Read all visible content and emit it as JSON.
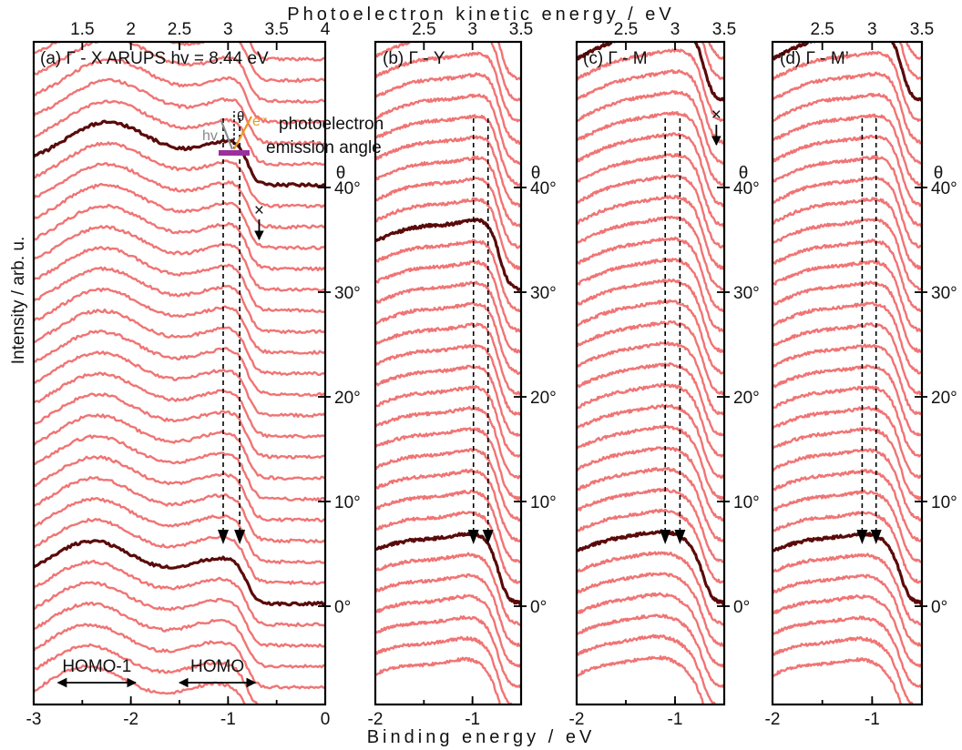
{
  "figure": {
    "top_axis_title": "Photoelectron kinetic energy / eV",
    "bottom_axis_title": "Binding energy / eV",
    "y_axis_title": "Intensity / arb. u.",
    "inset_labels": {
      "hv": "hv",
      "theta": "θ",
      "electron": "e⁻",
      "caption_line1": "photoelectron",
      "caption_line2": "emission angle"
    },
    "colors": {
      "curve": "#f07474",
      "highlight": "#5a0a0a",
      "inset_bar": "#9b2fa0",
      "inset_electron": "#f0961e",
      "inset_light": "#8a8a8a"
    }
  },
  "chart_data": [
    {
      "type": "line",
      "panel": "(a)",
      "title": "(a) Γ - X ARUPS  hv = 8.44 eV",
      "xlabel": "Binding energy / eV",
      "x2label": "Photoelectron kinetic energy / eV",
      "xlim": [
        -3,
        0
      ],
      "xticks": [
        -3,
        -2,
        -1,
        0
      ],
      "xtick_labels": [
        "-3",
        "-2",
        "-1",
        "0"
      ],
      "kinetic_ticks": [
        1.5,
        2,
        2.5,
        3,
        3.5,
        4
      ],
      "kinetic_tick_labels": [
        "1.5",
        "2",
        "2.5",
        "3",
        "3.5",
        "4"
      ],
      "kinetic_offset": 4.0,
      "ylabel": "θ",
      "theta_ticks": [
        "0°",
        "10°",
        "20°",
        "30°",
        "40°"
      ],
      "theta_values": [
        0,
        10,
        20,
        30,
        40
      ],
      "n_curves": 38,
      "theta_start": -12,
      "theta_step": 2,
      "highlight_theta": [
        0,
        40
      ],
      "peaks": {
        "homo": -1.05,
        "homo_width": 0.38,
        "homo1": -2.4,
        "homo1_width": 0.45,
        "cutoff": -0.8
      },
      "arrows": {
        "be": [
          -1.05,
          -0.88
        ],
        "label_x_be": -0.68
      },
      "annotations": [
        {
          "text": "HOMO-1",
          "from": -2.75,
          "to": -1.95
        },
        {
          "text": "HOMO",
          "from": -1.5,
          "to": -0.72
        }
      ]
    },
    {
      "type": "line",
      "panel": "(b)",
      "title": "(b) Γ - Y",
      "xlabel": "Binding energy / eV",
      "xlim": [
        -2,
        -0.5
      ],
      "xticks": [
        -2,
        -1
      ],
      "xtick_labels": [
        "-2",
        "-1"
      ],
      "kinetic_ticks": [
        2.5,
        3,
        3.5
      ],
      "kinetic_tick_labels": [
        "2.5",
        "3",
        "3.5"
      ],
      "kinetic_offset": 4.0,
      "ylabel": "θ",
      "theta_ticks": [
        "0°",
        "10°",
        "20°",
        "30°",
        "40°"
      ],
      "theta_values": [
        0,
        10,
        20,
        30,
        40
      ],
      "n_curves": 32,
      "theta_start": -12,
      "theta_step": 2,
      "highlight_theta": [
        0,
        30
      ],
      "peaks": {
        "homo": -0.88,
        "homo_width": 0.28,
        "homo1": -1.6,
        "homo1_width": 0.6,
        "cutoff": -0.72
      },
      "arrows": {
        "be": [
          -0.99,
          -0.84
        ]
      }
    },
    {
      "type": "line",
      "panel": "(c)",
      "title": "(c) Γ - M",
      "xlabel": "Binding energy / eV",
      "xlim": [
        -2,
        -0.5
      ],
      "xticks": [
        -2,
        -1
      ],
      "xtick_labels": [
        "-2",
        "-1"
      ],
      "kinetic_ticks": [
        2.5,
        3,
        3.5
      ],
      "kinetic_tick_labels": [
        "2.5",
        "3",
        "3.5"
      ],
      "kinetic_offset": 4.0,
      "ylabel": "θ",
      "theta_ticks": [
        "0°",
        "10°",
        "20°",
        "30°",
        "40°"
      ],
      "theta_values": [
        0,
        10,
        20,
        30,
        40
      ],
      "n_curves": 40,
      "theta_start": -12,
      "theta_step": 2,
      "highlight_theta": [
        0,
        48
      ],
      "peaks": {
        "homo": -0.95,
        "homo_width": 0.3,
        "homo1": -1.6,
        "homo1_width": 0.55,
        "cutoff": -0.7
      },
      "arrows": {
        "be": [
          -1.1,
          -0.95
        ],
        "label_x_be": -0.58
      }
    },
    {
      "type": "line",
      "panel": "(d)",
      "title": "(d) Γ - M’",
      "xlabel": "Binding energy / eV",
      "xlim": [
        -2,
        -0.5
      ],
      "xticks": [
        -2,
        -1
      ],
      "xtick_labels": [
        "-2",
        "-1"
      ],
      "kinetic_ticks": [
        2.5,
        3,
        3.5
      ],
      "kinetic_tick_labels": [
        "2.5",
        "3",
        "3.5"
      ],
      "kinetic_offset": 4.0,
      "ylabel": "θ",
      "theta_ticks": [
        "0°",
        "10°",
        "20°",
        "30°",
        "40°"
      ],
      "theta_values": [
        0,
        10,
        20,
        30,
        40
      ],
      "n_curves": 40,
      "theta_start": -12,
      "theta_step": 2,
      "highlight_theta": [
        0,
        48
      ],
      "peaks": {
        "homo": -0.92,
        "homo_width": 0.28,
        "homo1": -1.6,
        "homo1_width": 0.55,
        "cutoff": -0.7
      },
      "arrows": {
        "be": [
          -1.1,
          -0.96
        ]
      }
    }
  ]
}
